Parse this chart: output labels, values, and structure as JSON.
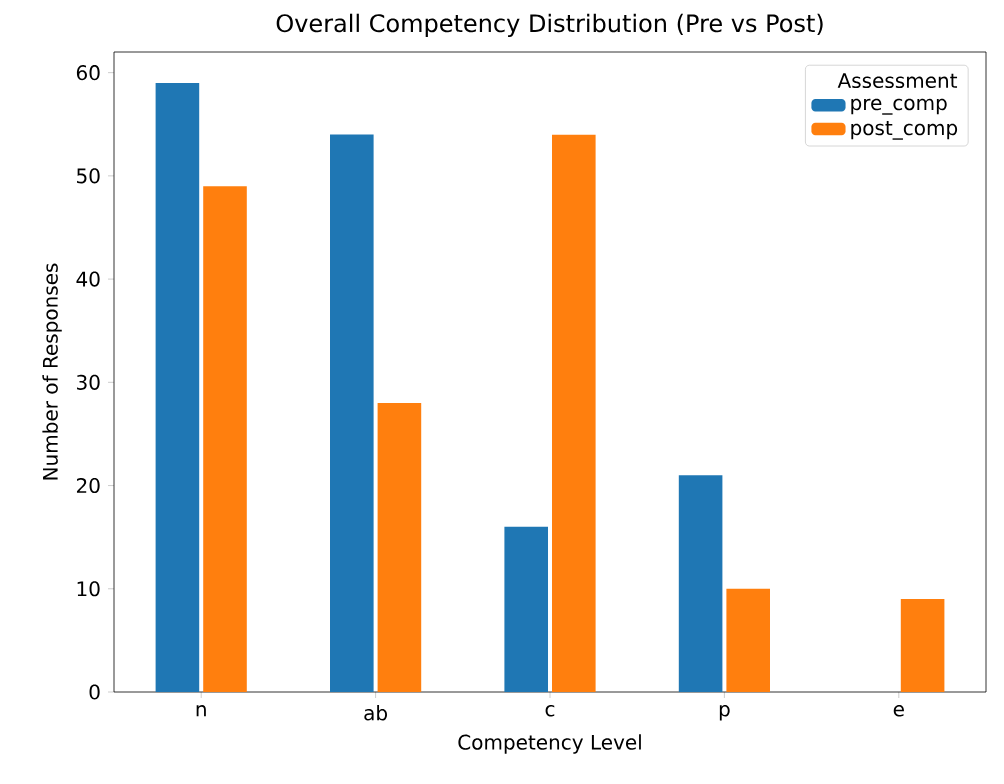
{
  "chart_data": {
    "type": "bar",
    "title": "Overall Competency Distribution (Pre vs Post)",
    "xlabel": "Competency Level",
    "ylabel": "Number of Responses",
    "legend_title": "Assessment",
    "legend": "top right",
    "categories": [
      "n",
      "ab",
      "c",
      "p",
      "e"
    ],
    "series": [
      {
        "name": "pre_comp",
        "color": "#1f77b4",
        "values": [
          59,
          54,
          16,
          21,
          0
        ]
      },
      {
        "name": "post_comp",
        "color": "#ff7f0e",
        "values": [
          49,
          28,
          54,
          10,
          9
        ]
      }
    ],
    "ylim": [
      0,
      62
    ],
    "yticks": [
      0,
      10,
      20,
      30,
      40,
      50,
      60
    ]
  }
}
